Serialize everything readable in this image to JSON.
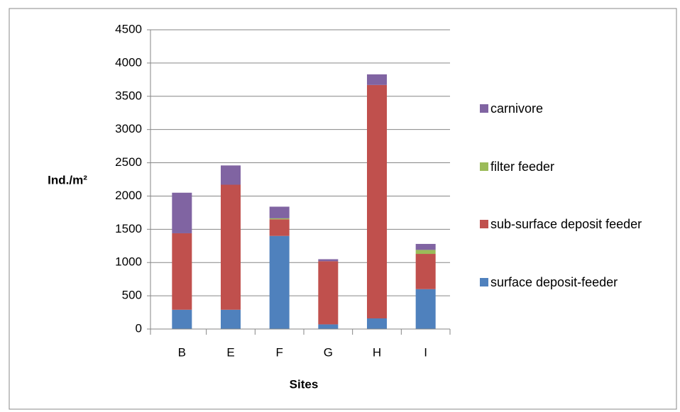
{
  "chart_data": {
    "type": "stacked_bar",
    "y_label": "Ind./m²",
    "x_label": "Sites",
    "categories": [
      "B",
      "E",
      "F",
      "G",
      "H",
      "I"
    ],
    "series": [
      {
        "name": "surface deposit-feeder",
        "color": "#4f81bd",
        "values": [
          290,
          290,
          1400,
          70,
          160,
          600
        ]
      },
      {
        "name": "sub-surface deposit feeder",
        "color": "#c0504d",
        "values": [
          1150,
          1880,
          250,
          950,
          3510,
          530
        ]
      },
      {
        "name": "filter feeder",
        "color": "#9bbb59",
        "values": [
          0,
          0,
          15,
          0,
          0,
          60
        ]
      },
      {
        "name": "carnivore",
        "color": "#8064a2",
        "values": [
          610,
          290,
          175,
          30,
          160,
          90
        ]
      }
    ],
    "ylim": [
      0,
      4500
    ],
    "yticks": [
      0,
      500,
      1000,
      1500,
      2000,
      2500,
      3000,
      3500,
      4000,
      4500
    ],
    "grid": true,
    "legend": "right"
  }
}
